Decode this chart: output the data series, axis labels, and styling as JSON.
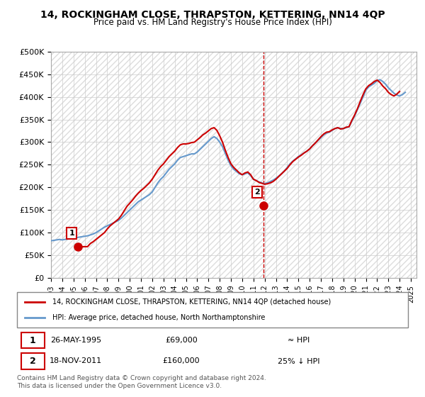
{
  "title": "14, ROCKINGHAM CLOSE, THRAPSTON, KETTERING, NN14 4QP",
  "subtitle": "Price paid vs. HM Land Registry's House Price Index (HPI)",
  "xlabel": "",
  "ylabel": "",
  "ylim": [
    0,
    500000
  ],
  "yticks": [
    0,
    50000,
    100000,
    150000,
    200000,
    250000,
    300000,
    350000,
    400000,
    450000,
    500000
  ],
  "ytick_labels": [
    "£0",
    "£50K",
    "£100K",
    "£150K",
    "£200K",
    "£250K",
    "£300K",
    "£350K",
    "£400K",
    "£450K",
    "£500K"
  ],
  "xlim_start": 1993.0,
  "xlim_end": 2025.5,
  "xticks": [
    1993,
    1994,
    1995,
    1996,
    1997,
    1998,
    1999,
    2000,
    2001,
    2002,
    2003,
    2004,
    2005,
    2006,
    2007,
    2008,
    2009,
    2010,
    2011,
    2012,
    2013,
    2014,
    2015,
    2016,
    2017,
    2018,
    2019,
    2020,
    2021,
    2022,
    2023,
    2024,
    2025
  ],
  "purchase1_x": 1995.4,
  "purchase1_y": 69000,
  "purchase1_label": "1",
  "purchase2_x": 2011.88,
  "purchase2_y": 160000,
  "purchase2_label": "2",
  "vline_x": 2011.88,
  "legend_line1": "14, ROCKINGHAM CLOSE, THRAPSTON, KETTERING, NN14 4QP (detached house)",
  "legend_line2": "HPI: Average price, detached house, North Northamptonshire",
  "annotation1_date": "26-MAY-1995",
  "annotation1_price": "£69,000",
  "annotation1_hpi": "≈ HPI",
  "annotation2_date": "18-NOV-2011",
  "annotation2_price": "£160,000",
  "annotation2_hpi": "25% ↓ HPI",
  "footer": "Contains HM Land Registry data © Crown copyright and database right 2024.\nThis data is licensed under the Open Government Licence v3.0.",
  "line_red_color": "#cc0000",
  "line_blue_color": "#6699cc",
  "hpi_data_x": [
    1993.0,
    1993.25,
    1993.5,
    1993.75,
    1994.0,
    1994.25,
    1994.5,
    1994.75,
    1995.0,
    1995.25,
    1995.5,
    1995.75,
    1996.0,
    1996.25,
    1996.5,
    1996.75,
    1997.0,
    1997.25,
    1997.5,
    1997.75,
    1998.0,
    1998.25,
    1998.5,
    1998.75,
    1999.0,
    1999.25,
    1999.5,
    1999.75,
    2000.0,
    2000.25,
    2000.5,
    2000.75,
    2001.0,
    2001.25,
    2001.5,
    2001.75,
    2002.0,
    2002.25,
    2002.5,
    2002.75,
    2003.0,
    2003.25,
    2003.5,
    2003.75,
    2004.0,
    2004.25,
    2004.5,
    2004.75,
    2005.0,
    2005.25,
    2005.5,
    2005.75,
    2006.0,
    2006.25,
    2006.5,
    2006.75,
    2007.0,
    2007.25,
    2007.5,
    2007.75,
    2008.0,
    2008.25,
    2008.5,
    2008.75,
    2009.0,
    2009.25,
    2009.5,
    2009.75,
    2010.0,
    2010.25,
    2010.5,
    2010.75,
    2011.0,
    2011.25,
    2011.5,
    2011.75,
    2012.0,
    2012.25,
    2012.5,
    2012.75,
    2013.0,
    2013.25,
    2013.5,
    2013.75,
    2014.0,
    2014.25,
    2014.5,
    2014.75,
    2015.0,
    2015.25,
    2015.5,
    2015.75,
    2016.0,
    2016.25,
    2016.5,
    2016.75,
    2017.0,
    2017.25,
    2017.5,
    2017.75,
    2018.0,
    2018.25,
    2018.5,
    2018.75,
    2019.0,
    2019.25,
    2019.5,
    2019.75,
    2020.0,
    2020.25,
    2020.5,
    2020.75,
    2021.0,
    2021.25,
    2021.5,
    2021.75,
    2022.0,
    2022.25,
    2022.5,
    2022.75,
    2023.0,
    2023.25,
    2023.5,
    2023.75,
    2024.0,
    2024.25,
    2024.5
  ],
  "hpi_data_y": [
    82000,
    83000,
    84000,
    85000,
    84000,
    85000,
    86000,
    87000,
    88000,
    89000,
    90000,
    91000,
    92000,
    93000,
    95000,
    97000,
    100000,
    104000,
    108000,
    112000,
    115000,
    118000,
    121000,
    124000,
    127000,
    132000,
    138000,
    144000,
    150000,
    156000,
    162000,
    168000,
    172000,
    176000,
    180000,
    184000,
    190000,
    200000,
    210000,
    218000,
    224000,
    232000,
    240000,
    246000,
    252000,
    260000,
    266000,
    268000,
    270000,
    272000,
    274000,
    274000,
    278000,
    284000,
    290000,
    296000,
    302000,
    308000,
    312000,
    308000,
    300000,
    290000,
    275000,
    260000,
    248000,
    240000,
    235000,
    230000,
    228000,
    230000,
    232000,
    226000,
    218000,
    215000,
    212000,
    210000,
    208000,
    210000,
    213000,
    216000,
    220000,
    225000,
    230000,
    236000,
    244000,
    252000,
    258000,
    263000,
    268000,
    272000,
    276000,
    280000,
    285000,
    292000,
    298000,
    304000,
    310000,
    316000,
    320000,
    322000,
    326000,
    330000,
    332000,
    330000,
    330000,
    332000,
    334000,
    346000,
    358000,
    372000,
    386000,
    400000,
    415000,
    422000,
    426000,
    430000,
    436000,
    438000,
    434000,
    428000,
    420000,
    414000,
    408000,
    404000,
    402000,
    405000,
    410000
  ],
  "price_data_x": [
    1993.0,
    1993.25,
    1993.5,
    1993.75,
    1994.0,
    1994.25,
    1994.5,
    1994.75,
    1995.0,
    1995.25,
    1995.5,
    1995.75,
    1996.0,
    1996.25,
    1996.5,
    1996.75,
    1997.0,
    1997.25,
    1997.5,
    1997.75,
    1998.0,
    1998.25,
    1998.5,
    1998.75,
    1999.0,
    1999.25,
    1999.5,
    1999.75,
    2000.0,
    2000.25,
    2000.5,
    2000.75,
    2001.0,
    2001.25,
    2001.5,
    2001.75,
    2002.0,
    2002.25,
    2002.5,
    2002.75,
    2003.0,
    2003.25,
    2003.5,
    2003.75,
    2004.0,
    2004.25,
    2004.5,
    2004.75,
    2005.0,
    2005.25,
    2005.5,
    2005.75,
    2006.0,
    2006.25,
    2006.5,
    2006.75,
    2007.0,
    2007.25,
    2007.5,
    2007.75,
    2008.0,
    2008.25,
    2008.5,
    2008.75,
    2009.0,
    2009.25,
    2009.5,
    2009.75,
    2010.0,
    2010.25,
    2010.5,
    2010.75,
    2011.0,
    2011.25,
    2011.5,
    2011.75,
    2012.0,
    2012.25,
    2012.5,
    2012.75,
    2013.0,
    2013.25,
    2013.5,
    2013.75,
    2014.0,
    2014.25,
    2014.5,
    2014.75,
    2015.0,
    2015.25,
    2015.5,
    2015.75,
    2016.0,
    2016.25,
    2016.5,
    2016.75,
    2017.0,
    2017.25,
    2017.5,
    2017.75,
    2018.0,
    2018.25,
    2018.5,
    2018.75,
    2019.0,
    2019.25,
    2019.5,
    2019.75,
    2020.0,
    2020.25,
    2020.5,
    2020.75,
    2021.0,
    2021.25,
    2021.5,
    2021.75,
    2022.0,
    2022.25,
    2022.5,
    2022.75,
    2023.0,
    2023.25,
    2023.5,
    2023.75,
    2024.0,
    2024.25,
    2024.5
  ],
  "price_data_y": [
    null,
    null,
    null,
    null,
    null,
    null,
    null,
    null,
    null,
    69000,
    69000,
    69000,
    69000,
    69000,
    76000,
    80000,
    85000,
    90000,
    95000,
    100000,
    108000,
    115000,
    120000,
    125000,
    130000,
    138000,
    148000,
    158000,
    165000,
    172000,
    180000,
    187000,
    193000,
    198000,
    204000,
    210000,
    218000,
    228000,
    238000,
    246000,
    252000,
    260000,
    268000,
    274000,
    280000,
    288000,
    294000,
    296000,
    296000,
    297000,
    299000,
    300000,
    305000,
    310000,
    316000,
    320000,
    325000,
    330000,
    332000,
    326000,
    314000,
    300000,
    282000,
    266000,
    252000,
    244000,
    238000,
    232000,
    228000,
    232000,
    234000,
    228000,
    218000,
    215000,
    211000,
    209000,
    207000,
    208000,
    210000,
    213000,
    218000,
    224000,
    230000,
    236000,
    242000,
    250000,
    257000,
    262000,
    267000,
    271000,
    276000,
    280000,
    285000,
    292000,
    298000,
    305000,
    312000,
    318000,
    322000,
    323000,
    327000,
    330000,
    332000,
    329000,
    330000,
    333000,
    334000,
    348000,
    360000,
    374000,
    390000,
    405000,
    418000,
    425000,
    429000,
    434000,
    437000,
    432000,
    424000,
    418000,
    410000,
    405000,
    402000,
    406000,
    412000
  ]
}
